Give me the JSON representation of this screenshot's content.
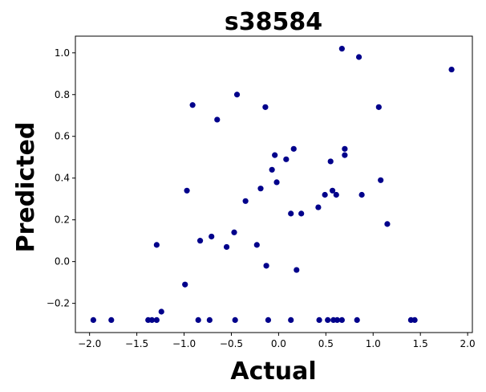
{
  "chart_data": {
    "type": "scatter",
    "title": "s38584",
    "xlabel": "Actual",
    "ylabel": "Predicted",
    "xlim": [
      -2.15,
      2.05
    ],
    "ylim": [
      -0.34,
      1.08
    ],
    "xticks": [
      -2.0,
      -1.5,
      -1.0,
      -0.5,
      0.0,
      0.5,
      1.0,
      1.5,
      2.0
    ],
    "xtick_labels": [
      "−2.0",
      "−1.5",
      "−1.0",
      "−0.5",
      "0.0",
      "0.5",
      "1.0",
      "1.5",
      "2.0"
    ],
    "yticks": [
      -0.2,
      0.0,
      0.2,
      0.4,
      0.6,
      0.8,
      1.0
    ],
    "ytick_labels": [
      "−0.2",
      "0.0",
      "0.2",
      "0.4",
      "0.6",
      "0.8",
      "1.0"
    ],
    "marker_color": "#00008b",
    "grid": false,
    "points": [
      {
        "x": -1.96,
        "y": -0.28
      },
      {
        "x": -1.77,
        "y": -0.28
      },
      {
        "x": -1.38,
        "y": -0.28
      },
      {
        "x": -1.34,
        "y": -0.28
      },
      {
        "x": -1.29,
        "y": -0.28
      },
      {
        "x": -1.29,
        "y": 0.08
      },
      {
        "x": -1.24,
        "y": -0.24
      },
      {
        "x": -0.99,
        "y": -0.11
      },
      {
        "x": -0.97,
        "y": 0.34
      },
      {
        "x": -0.91,
        "y": 0.75
      },
      {
        "x": -0.85,
        "y": -0.28
      },
      {
        "x": -0.83,
        "y": 0.1
      },
      {
        "x": -0.73,
        "y": -0.28
      },
      {
        "x": -0.71,
        "y": 0.12
      },
      {
        "x": -0.65,
        "y": 0.68
      },
      {
        "x": -0.55,
        "y": 0.07
      },
      {
        "x": -0.47,
        "y": 0.14
      },
      {
        "x": -0.46,
        "y": -0.28
      },
      {
        "x": -0.44,
        "y": 0.8
      },
      {
        "x": -0.35,
        "y": 0.29
      },
      {
        "x": -0.23,
        "y": 0.08
      },
      {
        "x": -0.19,
        "y": 0.35
      },
      {
        "x": -0.14,
        "y": 0.74
      },
      {
        "x": -0.13,
        "y": -0.02
      },
      {
        "x": -0.11,
        "y": -0.28
      },
      {
        "x": -0.07,
        "y": 0.44
      },
      {
        "x": -0.04,
        "y": 0.51
      },
      {
        "x": -0.02,
        "y": 0.38
      },
      {
        "x": 0.08,
        "y": 0.49
      },
      {
        "x": 0.13,
        "y": 0.23
      },
      {
        "x": 0.13,
        "y": -0.28
      },
      {
        "x": 0.16,
        "y": 0.54
      },
      {
        "x": 0.19,
        "y": -0.04
      },
      {
        "x": 0.24,
        "y": 0.23
      },
      {
        "x": 0.42,
        "y": 0.26
      },
      {
        "x": 0.43,
        "y": -0.28
      },
      {
        "x": 0.49,
        "y": 0.32
      },
      {
        "x": 0.52,
        "y": -0.28
      },
      {
        "x": 0.55,
        "y": 0.48
      },
      {
        "x": 0.57,
        "y": 0.34
      },
      {
        "x": 0.58,
        "y": -0.28
      },
      {
        "x": 0.61,
        "y": 0.32
      },
      {
        "x": 0.62,
        "y": -0.28
      },
      {
        "x": 0.67,
        "y": -0.28
      },
      {
        "x": 0.67,
        "y": 1.02
      },
      {
        "x": 0.7,
        "y": 0.54
      },
      {
        "x": 0.7,
        "y": 0.51
      },
      {
        "x": 0.83,
        "y": -0.28
      },
      {
        "x": 0.85,
        "y": 0.98
      },
      {
        "x": 0.88,
        "y": 0.32
      },
      {
        "x": 1.06,
        "y": 0.74
      },
      {
        "x": 1.08,
        "y": 0.39
      },
      {
        "x": 1.15,
        "y": 0.18
      },
      {
        "x": 1.4,
        "y": -0.28
      },
      {
        "x": 1.44,
        "y": -0.28
      },
      {
        "x": 1.83,
        "y": 0.92
      }
    ]
  }
}
